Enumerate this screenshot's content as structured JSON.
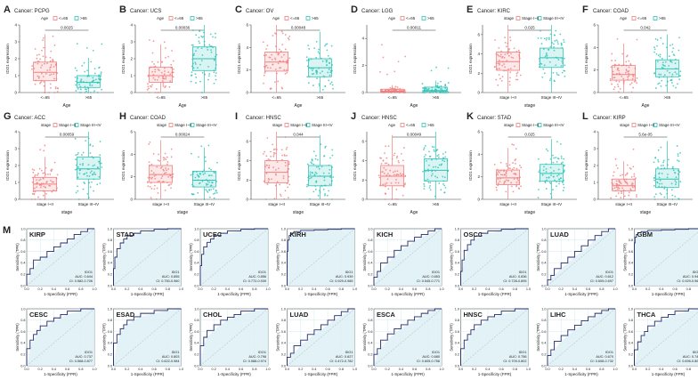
{
  "panel_letter_m": "M",
  "colors": {
    "group_a": "#f08080",
    "group_b": "#2ec4b6",
    "roc_line": "#1f2a6b",
    "roc_fill": "#dff1f5",
    "axis": "#444444",
    "grid": "#b9dbe3"
  },
  "chart_data": [
    {
      "panel": "A",
      "title": "Cancer: PCPG",
      "type": "box",
      "legend_label": "Age",
      "legend_items": [
        "<=65",
        ">65"
      ],
      "categories": [
        "<=65",
        ">65"
      ],
      "xlabel": "Age",
      "ylabel": "IDO1 expression",
      "pvalue": "0.0025",
      "medians": [
        1.2,
        0.6
      ],
      "q1": [
        0.7,
        0.3
      ],
      "q3": [
        1.8,
        1.0
      ],
      "ylim": [
        0,
        4
      ]
    },
    {
      "panel": "B",
      "title": "Cancer: UCS",
      "type": "box",
      "legend_label": "Age",
      "legend_items": [
        "<=65",
        ">65"
      ],
      "categories": [
        "<=65",
        ">65"
      ],
      "xlabel": "Age",
      "ylabel": "IDO1 expression",
      "pvalue": "0.00036",
      "medians": [
        1.0,
        2.0
      ],
      "q1": [
        0.6,
        1.3
      ],
      "q3": [
        1.5,
        2.7
      ],
      "ylim": [
        0,
        4
      ]
    },
    {
      "panel": "C",
      "title": "Cancer: OV",
      "type": "box",
      "legend_label": "Age",
      "legend_items": [
        "<=65",
        ">65"
      ],
      "categories": [
        "<=65",
        ">65"
      ],
      "xlabel": "Age",
      "ylabel": "IDO1 expression",
      "pvalue": "0.00048",
      "medians": [
        2.7,
        2.2
      ],
      "q1": [
        1.9,
        1.4
      ],
      "q3": [
        3.6,
        3.0
      ],
      "ylim": [
        0,
        6
      ]
    },
    {
      "panel": "D",
      "title": "Cancer: LGG",
      "type": "box",
      "legend_label": "Age",
      "legend_items": [
        "<=65",
        ">65"
      ],
      "categories": [
        "<=65",
        ">65"
      ],
      "xlabel": "Age",
      "ylabel": "IDO1 expression",
      "pvalue": "0.00011",
      "medians": [
        0.1,
        0.15
      ],
      "q1": [
        0.05,
        0.08
      ],
      "q3": [
        0.25,
        0.4
      ],
      "ylim": [
        0,
        5
      ]
    },
    {
      "panel": "E",
      "title": "Cancer: KIRC",
      "type": "box",
      "legend_label": "stage",
      "legend_items": [
        "Stage I~II",
        "Stage III~IV"
      ],
      "categories": [
        "stage I~II",
        "Stage III~IV"
      ],
      "xlabel": "stage",
      "ylabel": "IDO1 expression",
      "pvalue": "0.025",
      "medians": [
        3.2,
        3.6
      ],
      "q1": [
        2.3,
        2.6
      ],
      "q3": [
        4.2,
        4.6
      ],
      "ylim": [
        0,
        7
      ]
    },
    {
      "panel": "F",
      "title": "Cancer: COAD",
      "type": "box",
      "legend_label": "Age",
      "legend_items": [
        "<=65",
        ">65"
      ],
      "categories": [
        "<=65",
        ">65"
      ],
      "xlabel": "Age",
      "ylabel": "IDO1 expression",
      "pvalue": "0.042",
      "medians": [
        1.6,
        2.1
      ],
      "q1": [
        1.1,
        1.4
      ],
      "q3": [
        2.4,
        2.9
      ],
      "ylim": [
        0,
        6
      ]
    },
    {
      "panel": "G",
      "title": "Cancer: ACC",
      "type": "box",
      "legend_label": "stage",
      "legend_items": [
        "Stage I~II",
        "Stage III~IV"
      ],
      "categories": [
        "stage I~II",
        "Stage III~IV"
      ],
      "xlabel": "stage",
      "ylabel": "IDO1 expression",
      "pvalue": "0.00059",
      "medians": [
        0.9,
        1.8
      ],
      "q1": [
        0.5,
        1.2
      ],
      "q3": [
        1.3,
        2.5
      ],
      "ylim": [
        0,
        4
      ]
    },
    {
      "panel": "H",
      "title": "Cancer: COAD",
      "type": "box",
      "legend_label": "stage",
      "legend_items": [
        "Stage I~II",
        "Stage III~IV"
      ],
      "categories": [
        "stage I~II",
        "Stage III~IV"
      ],
      "xlabel": "stage",
      "ylabel": "IDO1 expression",
      "pvalue": "0.00024",
      "medians": [
        2.2,
        1.7
      ],
      "q1": [
        1.5,
        1.1
      ],
      "q3": [
        3.0,
        2.5
      ],
      "ylim": [
        0,
        6
      ]
    },
    {
      "panel": "I",
      "title": "Cancer: HNSC",
      "type": "box",
      "legend_label": "stage",
      "legend_items": [
        "Stage I~II",
        "Stage III~IV"
      ],
      "categories": [
        "stage I~II",
        "Stage III~IV"
      ],
      "xlabel": "stage",
      "ylabel": "IDO1 expression",
      "pvalue": "0.044",
      "medians": [
        2.8,
        2.4
      ],
      "q1": [
        1.7,
        1.4
      ],
      "q3": [
        4.0,
        3.5
      ],
      "ylim": [
        0,
        7
      ]
    },
    {
      "panel": "J",
      "title": "Cancer: HNSC",
      "type": "box",
      "legend_label": "Age",
      "legend_items": [
        "<=65",
        ">65"
      ],
      "categories": [
        "<=65",
        ">65"
      ],
      "xlabel": "Age",
      "ylabel": "IDO1 expression",
      "pvalue": "0.00049",
      "medians": [
        2.4,
        3.0
      ],
      "q1": [
        1.4,
        1.9
      ],
      "q3": [
        3.5,
        4.2
      ],
      "ylim": [
        0,
        7
      ]
    },
    {
      "panel": "K",
      "title": "Cancer: STAD",
      "type": "box",
      "legend_label": "stage",
      "legend_items": [
        "Stage I~II",
        "Stage III~IV"
      ],
      "categories": [
        "stage I~II",
        "Stage III~IV"
      ],
      "xlabel": "stage",
      "ylabel": "IDO1 expression",
      "pvalue": "0.025",
      "medians": [
        1.9,
        2.3
      ],
      "q1": [
        1.3,
        1.6
      ],
      "q3": [
        2.6,
        3.1
      ],
      "ylim": [
        0,
        6
      ]
    },
    {
      "panel": "L",
      "title": "Cancer: KIRP",
      "type": "box",
      "legend_label": "stage",
      "legend_items": [
        "Stage I~II",
        "Stage III~IV"
      ],
      "categories": [
        "stage I~II",
        "Stage III~IV"
      ],
      "xlabel": "stage",
      "ylabel": "IDO1 expression",
      "pvalue": "5.6e-05",
      "medians": [
        0.8,
        1.2
      ],
      "q1": [
        0.5,
        0.7
      ],
      "q3": [
        1.2,
        1.8
      ],
      "ylim": [
        0,
        4
      ]
    },
    {
      "panel": "M1",
      "title": "KIRP",
      "type": "roc",
      "legend": "IDO1",
      "auc": "AUC: 0.644",
      "ci": "CI: 0.582-0.706",
      "xlabel": "1-Specificity (FPR)",
      "ylabel": "Sensitivity (TPR)",
      "fpr": [
        0,
        0.05,
        0.1,
        0.2,
        0.3,
        0.4,
        0.5,
        0.6,
        0.7,
        0.8,
        0.9,
        1
      ],
      "tpr": [
        0,
        0.2,
        0.3,
        0.45,
        0.5,
        0.6,
        0.68,
        0.75,
        0.82,
        0.9,
        0.95,
        1
      ]
    },
    {
      "panel": "M2",
      "title": "STAD",
      "type": "roc",
      "legend": "IDO1",
      "auc": "AUC: 0.855",
      "ci": "CI: 0.750-0.960",
      "xlabel": "1-Specificity (FPR)",
      "ylabel": "Sensitivity (TPR)",
      "fpr": [
        0,
        0.02,
        0.05,
        0.1,
        0.15,
        0.2,
        0.3,
        0.4,
        0.6,
        0.8,
        1
      ],
      "tpr": [
        0,
        0.3,
        0.5,
        0.65,
        0.75,
        0.82,
        0.88,
        0.92,
        0.96,
        0.99,
        1
      ]
    },
    {
      "panel": "M3",
      "title": "UCEC",
      "type": "roc",
      "legend": "IDO1",
      "auc": "AUC: 0.856",
      "ci": "CI: 0.772-0.939",
      "xlabel": "1-Specificity (FPR)",
      "ylabel": "Sensitivity (TPR)",
      "fpr": [
        0,
        0.02,
        0.05,
        0.1,
        0.15,
        0.2,
        0.3,
        0.4,
        0.6,
        0.8,
        1
      ],
      "tpr": [
        0,
        0.35,
        0.55,
        0.68,
        0.76,
        0.82,
        0.88,
        0.92,
        0.96,
        0.99,
        1
      ]
    },
    {
      "panel": "M4",
      "title": "KIRH",
      "type": "roc",
      "legend": "IDO1",
      "auc": "AUC: 0.939",
      "ci": "CI: 0.929-0.985",
      "xlabel": "1-Specificity (FPR)",
      "ylabel": "Sensitivity (TPR)",
      "fpr": [
        0,
        0.01,
        0.03,
        0.05,
        0.1,
        0.2,
        0.4,
        0.6,
        0.8,
        1
      ],
      "tpr": [
        0,
        0.6,
        0.8,
        0.88,
        0.92,
        0.95,
        0.97,
        0.98,
        0.99,
        1
      ]
    },
    {
      "panel": "M5",
      "title": "KICH",
      "type": "roc",
      "legend": "IDO1",
      "auc": "AUC: 0.653",
      "ci": "CI: 0.545-0.771",
      "xlabel": "1-Specificity (FPR)",
      "ylabel": "Sensitivity (TPR)",
      "fpr": [
        0,
        0.05,
        0.1,
        0.2,
        0.3,
        0.4,
        0.5,
        0.6,
        0.7,
        0.8,
        0.9,
        1
      ],
      "tpr": [
        0,
        0.15,
        0.25,
        0.4,
        0.5,
        0.62,
        0.7,
        0.78,
        0.85,
        0.9,
        0.96,
        1
      ]
    },
    {
      "panel": "M6",
      "title": "OSCC",
      "type": "roc",
      "legend": "IDO1",
      "auc": "AUC: 0.836",
      "ci": "CI: 0.728-0.895",
      "xlabel": "1-Specificity (FPR)",
      "ylabel": "Sensitivity (TPR)",
      "fpr": [
        0,
        0.02,
        0.05,
        0.1,
        0.15,
        0.2,
        0.3,
        0.4,
        0.6,
        0.8,
        1
      ],
      "tpr": [
        0,
        0.25,
        0.45,
        0.62,
        0.72,
        0.8,
        0.87,
        0.92,
        0.96,
        0.99,
        1
      ]
    },
    {
      "panel": "M7",
      "title": "LUAD",
      "type": "roc",
      "legend": "IDO1",
      "auc": "AUC: 0.612",
      "ci": "CI: 0.509-0.697",
      "xlabel": "1-Specificity (FPR)",
      "ylabel": "Sensitivity (TPR)",
      "fpr": [
        0,
        0.05,
        0.1,
        0.2,
        0.3,
        0.4,
        0.5,
        0.6,
        0.7,
        0.8,
        0.9,
        1
      ],
      "tpr": [
        0,
        0.1,
        0.18,
        0.3,
        0.4,
        0.5,
        0.6,
        0.7,
        0.8,
        0.88,
        0.95,
        1
      ]
    },
    {
      "panel": "M8",
      "title": "GBM",
      "type": "roc",
      "legend": "IDO1",
      "auc": "AUC: 0.946",
      "ci": "CI: 0.929-0.967",
      "xlabel": "1-Specificity (FPR)",
      "ylabel": "Sensitivity (TPR)",
      "fpr": [
        0,
        0.01,
        0.03,
        0.05,
        0.1,
        0.2,
        0.4,
        0.6,
        0.8,
        1
      ],
      "tpr": [
        0,
        0.75,
        0.85,
        0.9,
        0.93,
        0.95,
        0.97,
        0.98,
        0.99,
        1
      ]
    },
    {
      "panel": "M9",
      "title": "CESC",
      "type": "roc",
      "legend": "IDO1",
      "auc": "AUC: 0.737",
      "ci": "CI: 0.568-0.877",
      "xlabel": "1-Specificity (FPR)",
      "ylabel": "Sensitivity (TPR)",
      "fpr": [
        0,
        0.05,
        0.1,
        0.15,
        0.2,
        0.3,
        0.4,
        0.5,
        0.6,
        0.8,
        1
      ],
      "tpr": [
        0,
        0.3,
        0.45,
        0.55,
        0.62,
        0.7,
        0.78,
        0.84,
        0.9,
        0.96,
        1
      ]
    },
    {
      "panel": "M10",
      "title": "ESAD",
      "type": "roc",
      "legend": "IDO1",
      "auc": "AUC: 0.803",
      "ci": "CI: 0.622-0.984",
      "xlabel": "1-Specificity (FPR)",
      "ylabel": "Sensitivity (TPR)",
      "fpr": [
        0,
        0.05,
        0.1,
        0.15,
        0.2,
        0.3,
        0.4,
        0.6,
        0.8,
        1
      ],
      "tpr": [
        0,
        0.4,
        0.55,
        0.65,
        0.72,
        0.8,
        0.86,
        0.92,
        0.97,
        1
      ]
    },
    {
      "panel": "M11",
      "title": "CHOL",
      "type": "roc",
      "legend": "IDO1",
      "auc": "AUC: 0.796",
      "ci": "CI: 0.588-0.974",
      "xlabel": "1-Specificity (FPR)",
      "ylabel": "Sensitivity (TPR)",
      "fpr": [
        0,
        0.05,
        0.1,
        0.2,
        0.3,
        0.4,
        0.5,
        0.6,
        0.8,
        1
      ],
      "tpr": [
        0,
        0.35,
        0.5,
        0.62,
        0.72,
        0.8,
        0.85,
        0.9,
        0.96,
        1
      ]
    },
    {
      "panel": "M12",
      "title": "LUAD",
      "type": "roc",
      "legend": "IDO1",
      "auc": "AUC: 0.627",
      "ci": "CI: 0.472-0.782",
      "xlabel": "1-Specificity (FPR)",
      "ylabel": "Sensitivity (TPR)",
      "fpr": [
        0,
        0.05,
        0.1,
        0.2,
        0.3,
        0.4,
        0.5,
        0.6,
        0.7,
        0.8,
        0.9,
        1
      ],
      "tpr": [
        0,
        0.15,
        0.22,
        0.35,
        0.45,
        0.55,
        0.63,
        0.72,
        0.8,
        0.88,
        0.95,
        1
      ]
    },
    {
      "panel": "M13",
      "title": "ESCA",
      "type": "roc",
      "legend": "IDO1",
      "auc": "AUC: 0.680",
      "ci": "CI: 0.605-0.756",
      "xlabel": "1-Specificity (FPR)",
      "ylabel": "Sensitivity (TPR)",
      "fpr": [
        0,
        0.05,
        0.1,
        0.2,
        0.3,
        0.4,
        0.5,
        0.6,
        0.7,
        0.8,
        0.9,
        1
      ],
      "tpr": [
        0,
        0.2,
        0.3,
        0.45,
        0.56,
        0.65,
        0.72,
        0.8,
        0.86,
        0.92,
        0.97,
        1
      ]
    },
    {
      "panel": "M14",
      "title": "HNSC",
      "type": "roc",
      "legend": "IDO1",
      "auc": "AUC: 0.756",
      "ci": "CI: 0.709-0.802",
      "xlabel": "1-Specificity (FPR)",
      "ylabel": "Sensitivity (TPR)",
      "fpr": [
        0,
        0.05,
        0.1,
        0.15,
        0.2,
        0.3,
        0.4,
        0.5,
        0.6,
        0.8,
        1
      ],
      "tpr": [
        0,
        0.3,
        0.45,
        0.55,
        0.63,
        0.72,
        0.8,
        0.86,
        0.9,
        0.96,
        1
      ]
    },
    {
      "panel": "M15",
      "title": "LIHC",
      "type": "roc",
      "legend": "IDO1",
      "auc": "AUC: 0.670",
      "ci": "CI: 0.608-0.732",
      "xlabel": "1-Specificity (FPR)",
      "ylabel": "Sensitivity (TPR)",
      "fpr": [
        0,
        0.05,
        0.1,
        0.2,
        0.3,
        0.4,
        0.5,
        0.6,
        0.7,
        0.8,
        0.9,
        1
      ],
      "tpr": [
        0,
        0.18,
        0.28,
        0.43,
        0.53,
        0.63,
        0.71,
        0.79,
        0.86,
        0.92,
        0.97,
        1
      ]
    },
    {
      "panel": "M16",
      "title": "THCA",
      "type": "roc",
      "legend": "IDO1",
      "auc": "AUC: 0.746",
      "ci": "CI: 0.696-0.803",
      "xlabel": "1-Specificity (FPR)",
      "ylabel": "Sensitivity (TPR)",
      "fpr": [
        0,
        0.05,
        0.1,
        0.15,
        0.2,
        0.3,
        0.4,
        0.5,
        0.6,
        0.8,
        1
      ],
      "tpr": [
        0,
        0.28,
        0.42,
        0.53,
        0.6,
        0.7,
        0.78,
        0.85,
        0.9,
        0.96,
        1
      ]
    }
  ]
}
